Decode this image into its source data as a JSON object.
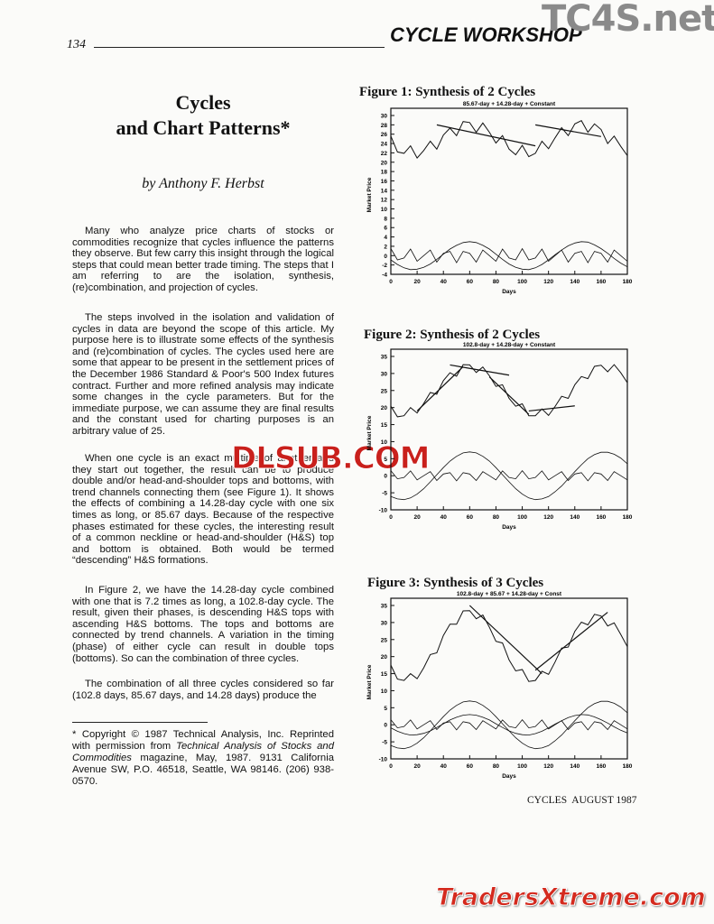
{
  "header": {
    "page_number": "134",
    "section": "CYCLE WORKSHOP"
  },
  "watermarks": [
    "TC4S.net",
    "DLSUB.COM",
    "TradersXtreme.com"
  ],
  "article": {
    "title": [
      "Cycles",
      "and Chart Patterns*"
    ],
    "byline": "by Anthony F. Herbst",
    "paragraphs": [
      "Many who analyze price charts of stocks or commodities recognize that cycles influence the patterns they observe. But few carry this insight through the logical steps that could mean better trade timing. The steps that I am referring to are the isolation, synthesis, (re)combination, and projection of cycles.",
      "The steps involved in the isolation and validation of cycles in data are beyond the scope of this article. My purpose here is to illustrate some effects of the synthesis and (re)combination of cycles. The cycles used here are some that appear to be present in the settlement prices of the December 1986 Standard & Poor's 500 Index futures contract. Further and more refined analysis may indicate some changes in the cycle parameters. But for the immediate purpose, we can assume they are final results and the constant used for charting purposes is an arbitrary value of 25.",
      "When one cycle is an exact multiple of another and they start out together, the result can be to produce double and/or head-and-shoulder tops and bottoms, with trend channels connecting them (see Figure 1). It shows the effects of combining a 14.28-day cycle with one six times as long, or 85.67 days. Because of the respective phases estimated for these cycles, the interesting result of a common neckline or head-and-shoulder (H&S) top and bottom is obtained. Both would be termed “descending” H&S formations.",
      "In Figure 2, we have the 14.28-day cycle combined with one that is 7.2 times as long, a 102.8-day cycle. The result, given their phases, is descending H&S tops with ascending H&S bottoms. The tops and bottoms are connected by trend channels. A variation in the timing (phase) of either cycle can result in double tops (bottoms). So can the combination of three cycles.",
      "The combination of all three cycles considered so far (102.8 days, 85.67 days, and 14.28 days) produce the"
    ],
    "footnote": [
      "* Copyright © 1987 Technical Analysis, Inc. Reprinted with permission from ",
      "Technical Analysis of Stocks and Commodities",
      " magazine, May, 1987. 9131 California Avenue SW, P.O. 46518, Seattle, WA 98146. (206) 938-0570."
    ]
  },
  "footer": "CYCLES  AUGUST 1987",
  "figures": [
    {
      "title": "Figure 1: Synthesis of 2 Cycles",
      "chart_data": {
        "type": "line",
        "subtitle": "85.67-day + 14.28-day + Constant",
        "x_label": "Days",
        "y_label": "Market Price",
        "x": [
          0,
          5,
          10,
          15,
          20,
          25,
          30,
          35,
          40,
          45,
          50,
          55,
          60,
          65,
          70,
          75,
          80,
          85,
          90,
          95,
          100,
          105,
          110,
          115,
          120,
          125,
          130,
          135,
          140,
          145,
          150,
          155,
          160,
          165,
          170,
          175,
          180
        ],
        "series": [
          {
            "color": "#111",
            "values": [
              25.6,
              22.2,
              21.9,
              23.5,
              20.9,
              22.5,
              24.5,
              22.8,
              25.8,
              27.3,
              25.7,
              28.7,
              28.5,
              26.4,
              28.4,
              26.4,
              24.1,
              25.7,
              22.8,
              21.6,
              23.6,
              21.2,
              21.9,
              24.5,
              22.9,
              25.2,
              27.4,
              25.7,
              28.2,
              28.9,
              26.4,
              28.2,
              27.0,
              24.0,
              25.6,
              23.4,
              21.4
            ]
          },
          {
            "color": "#111",
            "values": [
              -0.9,
              -1.9,
              -2.6,
              -3.0,
              -2.9,
              -2.5,
              -1.8,
              -0.8,
              0.3,
              1.4,
              2.2,
              2.8,
              3.0,
              2.8,
              2.2,
              1.4,
              0.3,
              -0.8,
              -1.8,
              -2.5,
              -2.9,
              -3.0,
              -2.6,
              -1.9,
              -0.9,
              0.2,
              1.2,
              2.1,
              2.7,
              3.0,
              2.9,
              2.3,
              1.5,
              0.5,
              -0.6,
              -1.6,
              -2.4
            ]
          },
          {
            "color": "#111",
            "values": [
              1.5,
              -0.9,
              -0.5,
              1.4,
              -1.2,
              0,
              1.2,
              -1.4,
              0.5,
              0.9,
              -1.5,
              0.9,
              0.5,
              -1.4,
              1.2,
              0,
              -1.2,
              1.4,
              -0.5,
              -0.9,
              1.5,
              -0.9,
              -0.5,
              1.4,
              -1.2,
              0,
              1.2,
              -1.4,
              0.5,
              0.9,
              -1.5,
              0.9,
              0.5,
              -1.4,
              1.2,
              0,
              -1.2
            ]
          }
        ],
        "trend_lines": [
          {
            "x": [
              35,
              110
            ],
            "y": [
              28,
              23.5
            ]
          },
          {
            "x": [
              110,
              160
            ],
            "y": [
              28,
              25.5
            ]
          }
        ],
        "xlim": [
          0,
          180
        ],
        "xticks": [
          0,
          20,
          40,
          60,
          80,
          100,
          120,
          140,
          160,
          180
        ],
        "ylim": [
          -4,
          30
        ],
        "yticks": [
          -4,
          -2,
          0,
          2,
          4,
          6,
          8,
          10,
          12,
          14,
          16,
          18,
          20,
          22,
          24,
          26,
          28,
          30
        ]
      }
    },
    {
      "title": "Figure 2: Synthesis of 2 Cycles",
      "chart_data": {
        "type": "line",
        "subtitle": "102.8-day + 14.28-day + Constant",
        "x_label": "Days",
        "y_label": "Market Price",
        "x": [
          0,
          5,
          10,
          15,
          20,
          25,
          30,
          35,
          40,
          45,
          50,
          55,
          60,
          65,
          70,
          75,
          80,
          85,
          90,
          95,
          100,
          105,
          110,
          115,
          120,
          125,
          130,
          135,
          140,
          145,
          150,
          155,
          160,
          165,
          170,
          175,
          180
        ],
        "series": [
          {
            "color": "#111",
            "values": [
              20.4,
              17.3,
              17.6,
              20.0,
              18.4,
              21.2,
              24.4,
              23.9,
              27.9,
              30.2,
              29.2,
              32.6,
              32.5,
              30.3,
              31.9,
              29.3,
              26.2,
              26.7,
              22.7,
              20.4,
              21.1,
              17.6,
              17.6,
              19.6,
              17.7,
              20.3,
              23.3,
              22.7,
              26.7,
              29.1,
              28.5,
              32.1,
              32.4,
              30.5,
              32.6,
              30.2,
              27.3
            ]
          },
          {
            "color": "#111",
            "values": [
              -6.1,
              -6.8,
              -7.0,
              -6.5,
              -5.4,
              -3.8,
              -1.8,
              0.3,
              2.4,
              4.3,
              5.7,
              6.7,
              7.0,
              6.7,
              5.7,
              4.3,
              2.4,
              0.3,
              -1.8,
              -3.8,
              -5.4,
              -6.5,
              -7.0,
              -6.8,
              -6.1,
              -4.7,
              -3.0,
              -0.9,
              1.2,
              3.2,
              5.0,
              6.2,
              6.9,
              6.9,
              6.3,
              5.2,
              3.5
            ]
          },
          {
            "color": "#111",
            "values": [
              1.5,
              -0.9,
              -0.5,
              1.4,
              -1.2,
              0,
              1.2,
              -1.4,
              0.5,
              0.9,
              -1.5,
              0.9,
              0.5,
              -1.4,
              1.2,
              0,
              -1.2,
              1.4,
              -0.5,
              -0.9,
              1.5,
              -0.9,
              -0.5,
              1.4,
              -1.2,
              0,
              1.2,
              -1.4,
              0.5,
              0.9,
              -1.5,
              0.9,
              0.5,
              -1.4,
              1.2,
              0,
              -1.2
            ]
          }
        ],
        "trend_lines": [
          {
            "x": [
              20,
              55
            ],
            "y": [
              19,
              32
            ]
          },
          {
            "x": [
              45,
              90
            ],
            "y": [
              32.5,
              29.5
            ]
          },
          {
            "x": [
              75,
              105
            ],
            "y": [
              29,
              18
            ]
          },
          {
            "x": [
              105,
              140
            ],
            "y": [
              19,
              20.5
            ]
          }
        ],
        "xlim": [
          0,
          180
        ],
        "xticks": [
          0,
          20,
          40,
          60,
          80,
          100,
          120,
          140,
          160,
          180
        ],
        "ylim": [
          -10,
          35
        ],
        "yticks": [
          -10,
          -5,
          0,
          5,
          10,
          15,
          20,
          25,
          30,
          35
        ]
      }
    },
    {
      "title": "Figure 3: Synthesis of 3 Cycles",
      "chart_data": {
        "type": "line",
        "subtitle": "102.8-day + 85.67 + 14.28-day + Const",
        "x_label": "Days",
        "y_label": "Market Price",
        "x": [
          0,
          5,
          10,
          15,
          20,
          25,
          30,
          35,
          40,
          45,
          50,
          55,
          60,
          65,
          70,
          75,
          80,
          85,
          90,
          95,
          100,
          105,
          110,
          115,
          120,
          125,
          130,
          135,
          140,
          145,
          150,
          155,
          160,
          165,
          170,
          175,
          180
        ],
        "series": [
          {
            "color": "#111",
            "values": [
              17.5,
              13.4,
              13.0,
              15.0,
              13.5,
              16.7,
              20.6,
              21.1,
              26.2,
              29.5,
              29.5,
              33.4,
              33.5,
              31.1,
              32.2,
              28.6,
              24.5,
              24.0,
              19.0,
              15.8,
              16.2,
              12.7,
              13.0,
              15.7,
              14.8,
              18.4,
              22.5,
              22.8,
              27.4,
              30.1,
              29.3,
              32.4,
              31.9,
              29.0,
              29.9,
              26.5,
              22.9
            ]
          },
          {
            "color": "#111",
            "values": [
              -6.1,
              -6.8,
              -7.0,
              -6.5,
              -5.4,
              -3.8,
              -1.8,
              0.3,
              2.4,
              4.3,
              5.7,
              6.7,
              7.0,
              6.7,
              5.7,
              4.3,
              2.4,
              0.3,
              -1.8,
              -3.8,
              -5.4,
              -6.5,
              -7.0,
              -6.8,
              -6.1,
              -4.7,
              -3.0,
              -0.9,
              1.2,
              3.2,
              5.0,
              6.2,
              6.9,
              6.9,
              6.3,
              5.2,
              3.5
            ]
          },
          {
            "color": "#111",
            "values": [
              -0.9,
              -1.9,
              -2.6,
              -3.0,
              -2.9,
              -2.5,
              -1.8,
              -0.8,
              0.3,
              1.4,
              2.2,
              2.8,
              3.0,
              2.8,
              2.2,
              1.4,
              0.3,
              -0.8,
              -1.8,
              -2.5,
              -2.9,
              -3.0,
              -2.6,
              -1.9,
              -0.9,
              0.2,
              1.2,
              2.1,
              2.7,
              3.0,
              2.9,
              2.3,
              1.5,
              0.5,
              -0.6,
              -1.6,
              -2.4
            ]
          },
          {
            "color": "#111",
            "values": [
              1.5,
              -0.9,
              -0.5,
              1.4,
              -1.2,
              0,
              1.2,
              -1.4,
              0.5,
              0.9,
              -1.5,
              0.9,
              0.5,
              -1.4,
              1.2,
              0,
              -1.2,
              1.4,
              -0.5,
              -0.9,
              1.5,
              -0.9,
              -0.5,
              1.4,
              -1.2,
              0,
              1.2,
              -1.4,
              0.5,
              0.9,
              -1.5,
              0.9,
              0.5,
              -1.4,
              1.2,
              0,
              -1.2
            ]
          }
        ],
        "trend_lines": [
          {
            "x": [
              60,
              115
            ],
            "y": [
              35,
              15
            ]
          },
          {
            "x": [
              110,
              165
            ],
            "y": [
              16,
              33
            ]
          }
        ],
        "xlim": [
          0,
          180
        ],
        "xticks": [
          0,
          20,
          40,
          60,
          80,
          100,
          120,
          140,
          160,
          180
        ],
        "ylim": [
          -10,
          35
        ],
        "yticks": [
          -10,
          -5,
          0,
          5,
          10,
          15,
          20,
          25,
          30,
          35
        ]
      }
    }
  ]
}
